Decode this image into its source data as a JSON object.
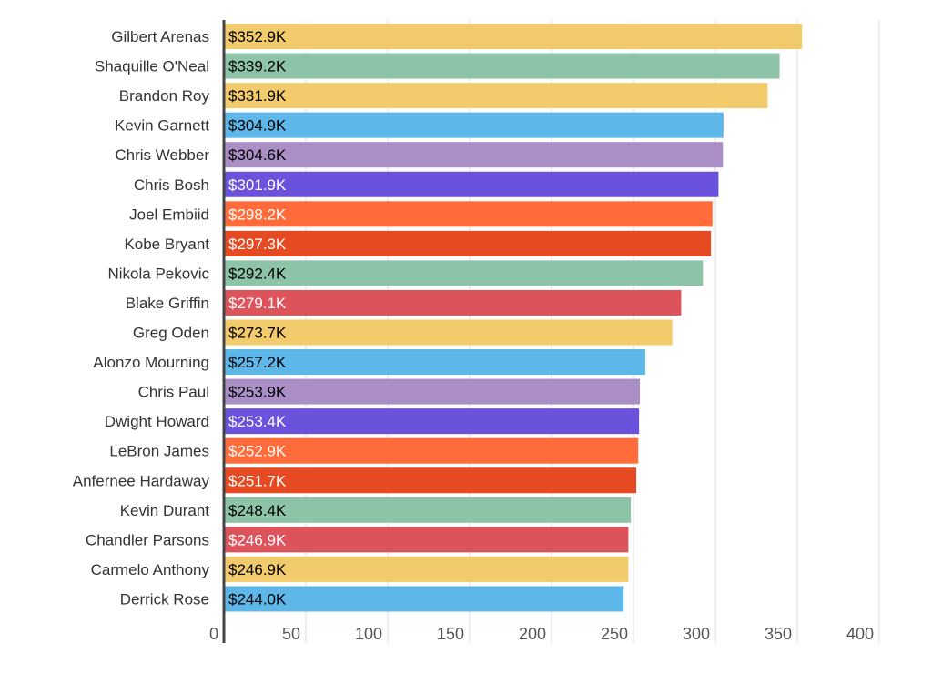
{
  "chart_data": {
    "type": "bar",
    "orientation": "horizontal",
    "categories": [
      "Gilbert Arenas",
      "Shaquille O'Neal",
      "Brandon Roy",
      "Kevin Garnett",
      "Chris Webber",
      "Chris Bosh",
      "Joel Embiid",
      "Kobe Bryant",
      "Nikola Pekovic",
      "Blake Griffin",
      "Greg Oden",
      "Alonzo Mourning",
      "Chris Paul",
      "Dwight Howard",
      "LeBron James",
      "Anfernee Hardaway",
      "Kevin Durant",
      "Chandler Parsons",
      "Carmelo Anthony",
      "Derrick Rose"
    ],
    "values": [
      352.9,
      339.2,
      331.9,
      304.9,
      304.6,
      301.9,
      298.2,
      297.3,
      292.4,
      279.1,
      273.7,
      257.2,
      253.9,
      253.4,
      252.9,
      251.7,
      248.4,
      246.9,
      246.9,
      244.0
    ],
    "data_labels": [
      "$352.9K",
      "$339.2K",
      "$331.9K",
      "$304.9K",
      "$304.6K",
      "$301.9K",
      "$298.2K",
      "$297.3K",
      "$292.4K",
      "$279.1K",
      "$273.7K",
      "$257.2K",
      "$253.9K",
      "$253.4K",
      "$252.9K",
      "$251.7K",
      "$248.4K",
      "$246.9K",
      "$246.9K",
      "$244.0K"
    ],
    "colors": [
      "#F2CB6C",
      "#8DC3A7",
      "#F2CB6C",
      "#5DB7E8",
      "#A98FC6",
      "#6A52DD",
      "#FF6B3A",
      "#E64A22",
      "#8DC3A7",
      "#DD535B",
      "#F2CB6C",
      "#5DB7E8",
      "#A98FC6",
      "#6A52DD",
      "#FF6B3A",
      "#E64A22",
      "#8DC3A7",
      "#DD535B",
      "#F2CB6C",
      "#5DB7E8"
    ],
    "label_colors": [
      "#000000",
      "#000000",
      "#000000",
      "#000000",
      "#000000",
      "#ffffff",
      "#ffffff",
      "#ffffff",
      "#000000",
      "#ffffff",
      "#000000",
      "#000000",
      "#000000",
      "#ffffff",
      "#ffffff",
      "#ffffff",
      "#000000",
      "#ffffff",
      "#000000",
      "#000000"
    ],
    "xticks": [
      0,
      50,
      100,
      150,
      200,
      250,
      300,
      350,
      400
    ],
    "xlim": [
      0,
      400
    ],
    "grid": true,
    "title": "",
    "xlabel": "",
    "ylabel": ""
  }
}
